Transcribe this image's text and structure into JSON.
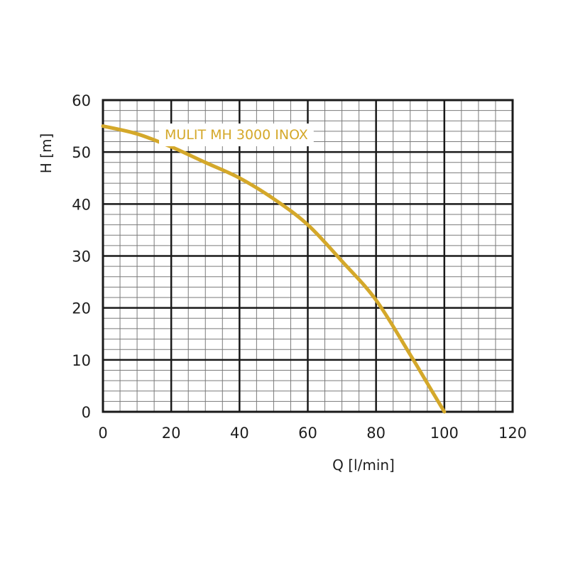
{
  "chart_data": {
    "type": "line",
    "xlabel": "Q [l/min]",
    "ylabel": "H [m]",
    "xlim": [
      0,
      120
    ],
    "ylim": [
      0,
      60
    ],
    "xticks": [
      "0",
      "20",
      "40",
      "60",
      "80",
      "100",
      "120"
    ],
    "yticks": [
      "0",
      "10",
      "20",
      "30",
      "40",
      "50",
      "60"
    ],
    "grid": true,
    "series": [
      {
        "name": "MULIT MH 3000 INOX",
        "color": "#d4a82a",
        "x": [
          0,
          10,
          20,
          30,
          40,
          50,
          60,
          70,
          80,
          90,
          95,
          100
        ],
        "y": [
          55,
          53.5,
          51,
          48,
          45,
          41,
          36,
          29,
          21.5,
          11,
          5.5,
          0
        ]
      }
    ]
  }
}
